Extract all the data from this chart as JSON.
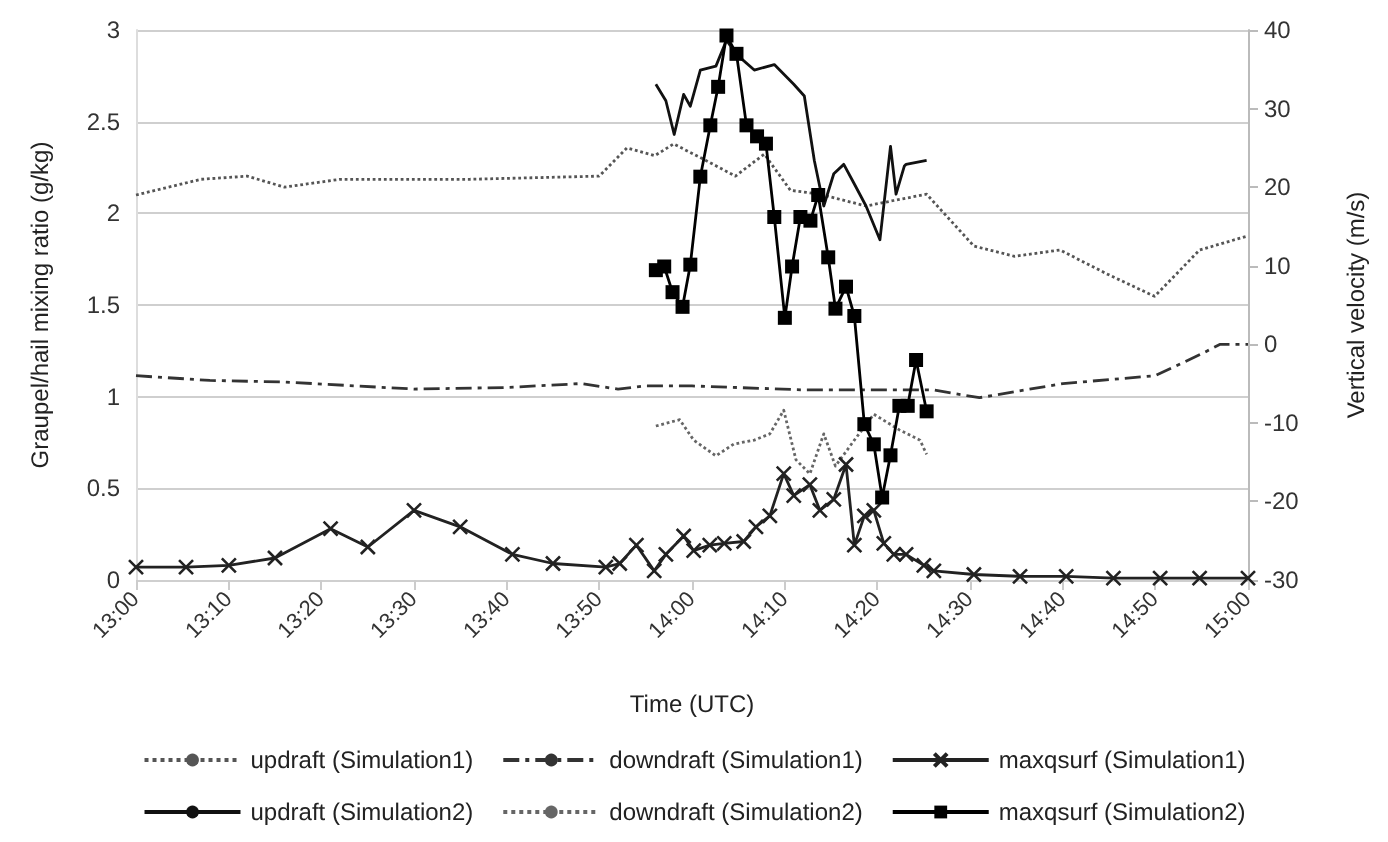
{
  "chart_data": {
    "type": "line",
    "xlabel": "Time (UTC)",
    "ylabel": "Graupel/hail mixing ratio (g/kg)",
    "y2label": "Vertical velocity (m/s)",
    "xlim": [
      13,
      15
    ],
    "xticks": [
      {
        "value": 13,
        "label": "13:00"
      },
      {
        "value": 13.167,
        "label": "13:10"
      },
      {
        "value": 13.333,
        "label": "13:20"
      },
      {
        "value": 13.5,
        "label": "13:30"
      },
      {
        "value": 13.667,
        "label": "13:40"
      },
      {
        "value": 13.833,
        "label": "13:50"
      },
      {
        "value": 14,
        "label": "14:00"
      },
      {
        "value": 14.167,
        "label": "14:10"
      },
      {
        "value": 14.333,
        "label": "14:20"
      },
      {
        "value": 14.5,
        "label": "14:30"
      },
      {
        "value": 14.667,
        "label": "14:40"
      },
      {
        "value": 14.833,
        "label": "14:50"
      },
      {
        "value": 15,
        "label": "15:00"
      }
    ],
    "ylim": [
      0,
      3
    ],
    "yticks": [
      0,
      0.5,
      1,
      1.5,
      2,
      2.5,
      3
    ],
    "y2lim": [
      -30,
      40
    ],
    "y2ticks": [
      -30,
      -20,
      -10,
      0,
      10,
      20,
      30,
      40
    ],
    "grid": "y",
    "legend": "bottom",
    "series": [
      {
        "name": "updraft (Simulation1)",
        "axis": "y2",
        "color": "#555555",
        "line_style": "dotted",
        "marker": "none",
        "x": [
          13,
          13.117,
          13.2,
          13.267,
          13.367,
          13.6,
          13.833,
          13.883,
          13.933,
          13.967,
          14.025,
          14.078,
          14.13,
          14.177,
          14.23,
          14.313,
          14.363,
          14.422,
          14.507,
          14.58,
          14.662,
          14.745,
          14.832,
          14.913,
          15
        ],
        "values": [
          19,
          21,
          21.4,
          20,
          21,
          21,
          21.4,
          25,
          24,
          25.5,
          23.4,
          21.4,
          24.2,
          19.6,
          19.1,
          17.6,
          18.3,
          19.1,
          12.5,
          11.2,
          12,
          9,
          6.1,
          12,
          13.8
        ]
      },
      {
        "name": "downdraft (Simulation1)",
        "axis": "y2",
        "color": "#333333",
        "line_style": "dashed",
        "marker": "none",
        "x": [
          13,
          13.133,
          13.267,
          13.5,
          13.667,
          13.8,
          13.867,
          13.917,
          14,
          14.2,
          14.433,
          14.517,
          14.667,
          14.833,
          14.917,
          14.95,
          15
        ],
        "values": [
          -4,
          -4.6,
          -4.8,
          -5.7,
          -5.5,
          -5,
          -5.7,
          -5.3,
          -5.3,
          -5.8,
          -5.8,
          -6.8,
          -5,
          -4,
          -1.2,
          0,
          0
        ]
      },
      {
        "name": "maxqsurf (Simulation1)",
        "color": "#222222",
        "line_style": "solid",
        "marker": "cross",
        "x": [
          13,
          13.09,
          13.167,
          13.25,
          13.35,
          13.417,
          13.5,
          13.583,
          13.677,
          13.75,
          13.845,
          13.87,
          13.9,
          13.932,
          13.953,
          13.985,
          14.003,
          14.032,
          14.058,
          14.093,
          14.115,
          14.14,
          14.165,
          14.183,
          14.212,
          14.23,
          14.255,
          14.277,
          14.292,
          14.31,
          14.327,
          14.345,
          14.363,
          14.385,
          14.417,
          14.435,
          14.507,
          14.59,
          14.673,
          14.758,
          14.842,
          14.913,
          15
        ],
        "values": [
          0.07,
          0.07,
          0.08,
          0.12,
          0.28,
          0.18,
          0.38,
          0.29,
          0.14,
          0.09,
          0.07,
          0.09,
          0.19,
          0.05,
          0.14,
          0.24,
          0.16,
          0.19,
          0.2,
          0.21,
          0.29,
          0.35,
          0.58,
          0.46,
          0.52,
          0.38,
          0.44,
          0.63,
          0.19,
          0.35,
          0.38,
          0.2,
          0.14,
          0.14,
          0.08,
          0.05,
          0.03,
          0.02,
          0.02,
          0.01,
          0.01,
          0.01,
          0.01
        ]
      },
      {
        "name": "updraft (Simulation2)",
        "axis": "y2",
        "color": "#111111",
        "line_style": "solid",
        "marker": "none",
        "x": [
          13.935,
          13.953,
          13.968,
          13.985,
          13.997,
          14.015,
          14.043,
          14.062,
          14.08,
          14.112,
          14.148,
          14.183,
          14.202,
          14.22,
          14.237,
          14.255,
          14.273,
          14.292,
          14.313,
          14.338,
          14.357,
          14.367,
          14.382,
          14.385,
          14.422
        ],
        "values": [
          33.1,
          31,
          26.7,
          31.8,
          30.3,
          34.9,
          35.4,
          38.7,
          36.9,
          34.9,
          35.6,
          33.1,
          31.6,
          23.4,
          17.6,
          21.7,
          22.9,
          20.4,
          17.6,
          13.3,
          25.2,
          19.1,
          22.7,
          22.9,
          23.4
        ]
      },
      {
        "name": "downdraft (Simulation2)",
        "axis": "y2",
        "color": "#666666",
        "line_style": "dotted",
        "marker": "none",
        "x": [
          13.935,
          13.978,
          14.003,
          14.043,
          14.075,
          14.112,
          14.14,
          14.165,
          14.187,
          14.212,
          14.237,
          14.258,
          14.292,
          14.327,
          14.373,
          14.41,
          14.422
        ],
        "values": [
          -10.4,
          -9.6,
          -12.2,
          -14.2,
          -12.7,
          -12.2,
          -11.4,
          -8.4,
          -14.7,
          -16.5,
          -11.4,
          -15.5,
          -12.2,
          -8.9,
          -10.9,
          -12.2,
          -14
        ]
      },
      {
        "name": "maxqsurf (Simulation2)",
        "color": "#000000",
        "line_style": "solid",
        "marker": "square",
        "x": [
          13.935,
          13.95,
          13.965,
          13.983,
          13.997,
          14.015,
          14.033,
          14.047,
          14.062,
          14.08,
          14.098,
          14.117,
          14.133,
          14.148,
          14.167,
          14.18,
          14.195,
          14.213,
          14.227,
          14.245,
          14.258,
          14.277,
          14.292,
          14.31,
          14.327,
          14.342,
          14.357,
          14.373,
          14.388,
          14.403,
          14.422
        ],
        "values": [
          1.69,
          1.71,
          1.57,
          1.49,
          1.72,
          2.2,
          2.48,
          2.69,
          2.97,
          2.87,
          2.48,
          2.42,
          2.38,
          1.98,
          1.43,
          1.71,
          1.98,
          1.96,
          2.1,
          1.76,
          1.48,
          1.6,
          1.44,
          0.85,
          0.74,
          0.45,
          0.68,
          0.95,
          0.95,
          1.2,
          0.92
        ]
      }
    ]
  }
}
